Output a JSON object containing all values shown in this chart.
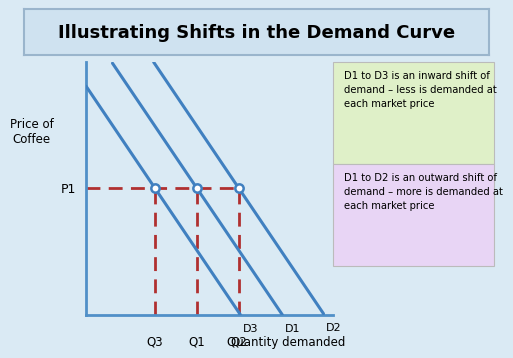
{
  "title": "Illustrating Shifts in the Demand Curve",
  "title_fontsize": 13,
  "title_bg_color": "#cfe2f0",
  "title_border_color": "#9ab5cc",
  "ylabel": "Price of\nCoffee",
  "xlabel": "Quantity demanded",
  "bg_color": "#daeaf4",
  "plot_bg_color": "#daeaf4",
  "curve_color": "#4080c0",
  "curve_linewidth": 2.2,
  "dashed_color": "#b03030",
  "dashed_linewidth": 2.0,
  "circle_color": "#4080c0",
  "p1_label": "P1",
  "q_labels": [
    "Q3",
    "Q1",
    "Q2"
  ],
  "d_labels": [
    "D3",
    "D1",
    "D2"
  ],
  "p1_y": 4.5,
  "q3_x": 2.8,
  "q1_x": 4.5,
  "q2_x": 6.2,
  "xlim": [
    0,
    10
  ],
  "ylim": [
    0,
    9
  ],
  "slope": -1.3,
  "d3_intercept": 8.14,
  "d1_intercept": 10.35,
  "d2_intercept": 12.56,
  "box1_text": "D1 to D3 is an inward shift of\ndemand – less is demanded at\neach market price",
  "box2_text": "D1 to D2 is an outward shift of\ndemand – more is demanded at\neach market price",
  "box1_color": "#dff0c8",
  "box2_color": "#e8d5f5",
  "box_edge_color": "#bbbbbb",
  "axis_color": "#5090c8",
  "axis_linewidth": 2.0
}
